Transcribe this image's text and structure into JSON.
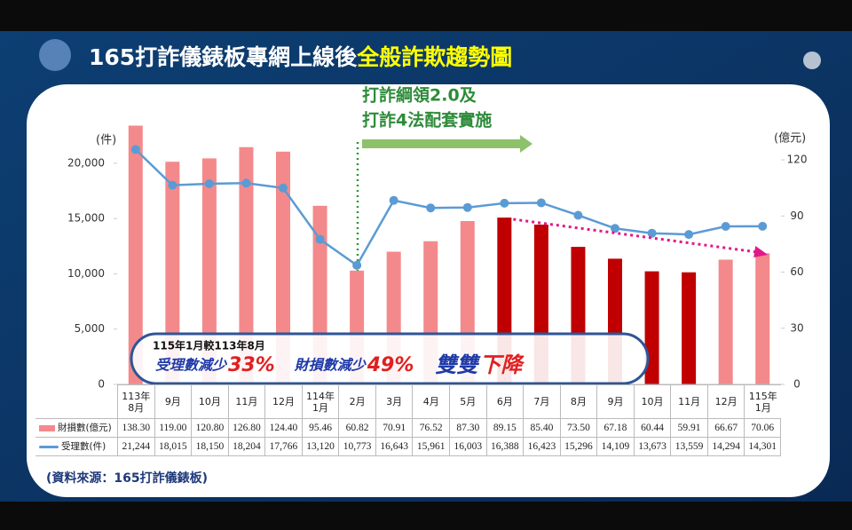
{
  "title": "165打詐儀錶板專網上線後",
  "title_highlight": "全般詐欺趨勢圖",
  "chart_data": {
    "type": "bar_line",
    "categories": [
      "113年\n8月",
      "9月",
      "10月",
      "11月",
      "12月",
      "114年\n1月",
      "2月",
      "3月",
      "4月",
      "5月",
      "6月",
      "7月",
      "8月",
      "9月",
      "10月",
      "11月",
      "12月",
      "115年\n1月"
    ],
    "y_label": "(件)",
    "y2_label": "(億元)",
    "ylim": [
      0,
      22000
    ],
    "yticks": [
      0,
      {
        "value": 5000,
        "label": "5,000"
      },
      {
        "value": 10000,
        "label": "10,000"
      },
      {
        "value": 15000,
        "label": "15,000"
      },
      {
        "value": 20000,
        "label": "20,000"
      }
    ],
    "y2lim": [
      0,
      130
    ],
    "y2ticks": [
      0,
      30,
      60,
      90,
      120
    ],
    "series": [
      {
        "name": "財損數(億元)",
        "kind": "bar",
        "axis": "y2",
        "color": "#f4898b",
        "colors": [
          "#f4898b",
          "#f4898b",
          "#f4898b",
          "#f4898b",
          "#f4898b",
          "#f4898b",
          "#f4898b",
          "#f4898b",
          "#f4898b",
          "#f4898b",
          "#c00000",
          "#c00000",
          "#c00000",
          "#c00000",
          "#c00000",
          "#c00000",
          "#f4898b",
          "#f4898b"
        ],
        "values": [
          138.3,
          119,
          120.8,
          126.8,
          124.4,
          95.46,
          60.82,
          70.91,
          76.52,
          87.3,
          89.15,
          85.4,
          73.5,
          67.18,
          60.44,
          59.91,
          66.67,
          70.06
        ],
        "value_labels": [
          "138.30",
          "119.00",
          "120.80",
          "126.80",
          "124.40",
          "95.46",
          "60.82",
          "70.91",
          "76.52",
          "87.30",
          "89.15",
          "85.40",
          "73.50",
          "67.18",
          "60.44",
          "59.91",
          "66.67",
          "70.06"
        ]
      },
      {
        "name": "受理數(件)",
        "kind": "line",
        "axis": "y",
        "color": "#5b9bd5",
        "values": [
          21244,
          18015,
          18150,
          18204,
          17766,
          13120,
          10773,
          16643,
          15961,
          16003,
          16388,
          16423,
          15296,
          14109,
          13673,
          13559,
          14294,
          14301
        ],
        "value_labels": [
          "21,244",
          "18,015",
          "18,150",
          "18,204",
          "17,766",
          "13,120",
          "10,773",
          "16,643",
          "15,961",
          "16,003",
          "16,388",
          "16,423",
          "15,296",
          "14,109",
          "13,673",
          "13,559",
          "14,294",
          "14,301"
        ]
      }
    ],
    "annotation": [
      "打詐綱領2.0及",
      "打詐4法配套實施"
    ],
    "callout": {
      "heading": "115年1月較113年8月",
      "text1": "受理數減少",
      "pct1": "33%",
      "text2": "財損數減少",
      "pct2": "49%",
      "text3": "雙雙",
      "text4": "下降"
    }
  },
  "source": "(資料來源：165打詐儀錶板)"
}
